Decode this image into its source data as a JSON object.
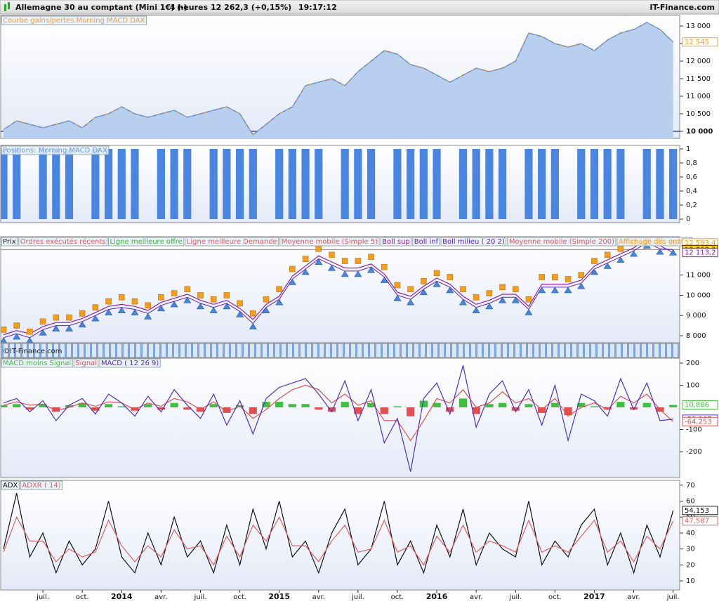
{
  "header": {
    "instrument": "Allemagne 30 au comptant (Mini 1€) (-)",
    "period": "4 heures",
    "quote": "12 262,3 (+0,15%)",
    "time": "19:17:12",
    "brand": "IT-Finance.com"
  },
  "watermark": "©IT-Finance.com",
  "chart_data": [
    {
      "type": "area",
      "title": "Courbe gains/pertes Morning MACD DAX",
      "title_color": "#f0a040",
      "x": [
        0,
        1,
        2,
        3,
        4,
        5,
        6,
        7,
        8,
        9,
        10,
        11,
        12,
        13,
        14,
        15,
        16,
        17,
        18,
        19,
        20,
        21,
        22,
        23,
        24,
        25,
        26,
        27,
        28,
        29,
        30,
        31,
        32,
        33,
        34,
        35,
        36,
        37,
        38,
        39,
        40,
        41,
        42,
        43,
        44,
        45,
        46,
        47,
        48,
        49,
        50,
        51
      ],
      "xlim": [
        0,
        51.5
      ],
      "ylim": [
        9800,
        13300
      ],
      "yticks": [
        {
          "value": 10000,
          "label": "10 000"
        },
        {
          "value": 10500,
          "label": "10 500"
        },
        {
          "value": 11000,
          "label": "11 000"
        },
        {
          "value": 11500,
          "label": "11 500"
        },
        {
          "value": 12000,
          "label": "12 000"
        },
        {
          "value": 12500,
          "label": "12 500"
        },
        {
          "value": 13000,
          "label": "13 000"
        }
      ],
      "baseline": 10000,
      "series": [
        {
          "name": "Courbe gains/pertes",
          "style": "area",
          "color": "#5b8fd6",
          "line_color": "#f0a040",
          "values": [
            10050,
            10300,
            10200,
            10100,
            10200,
            10300,
            10100,
            10400,
            10500,
            10700,
            10500,
            10400,
            10500,
            10600,
            10400,
            10500,
            10600,
            10700,
            10500,
            9900,
            10200,
            10500,
            10700,
            11300,
            11400,
            11500,
            11300,
            11700,
            12000,
            12300,
            12200,
            11900,
            11800,
            11600,
            11400,
            11600,
            11800,
            11700,
            11800,
            12000,
            12800,
            12700,
            12500,
            12400,
            12500,
            12300,
            12600,
            12800,
            12900,
            13100,
            12900,
            12545
          ]
        }
      ],
      "last_labels": [
        {
          "value": 12545,
          "label": "12 545",
          "color": "#f0a040",
          "fill": "#ffffff"
        }
      ]
    },
    {
      "type": "bar",
      "title": "Positions: Morning MACD DAX",
      "title_color": "#6a9ad8",
      "x": [
        0,
        1,
        2,
        3,
        4,
        5,
        6,
        7,
        8,
        9,
        10,
        11,
        12,
        13,
        14,
        15,
        16,
        17,
        18,
        19,
        20,
        21,
        22,
        23,
        24,
        25,
        26,
        27,
        28,
        29,
        30,
        31,
        32,
        33,
        34,
        35,
        36,
        37,
        38,
        39,
        40,
        41,
        42,
        43,
        44,
        45,
        46,
        47,
        48,
        49,
        50,
        51
      ],
      "xlim": [
        0,
        51.5
      ],
      "ylim": [
        -0.05,
        1.05
      ],
      "yticks": [
        0,
        {
          "value": 0.2,
          "label": "0,2"
        },
        {
          "value": 0.4,
          "label": "0,4"
        },
        {
          "value": 0.6,
          "label": "0,6"
        },
        {
          "value": 0.8,
          "label": "0,8"
        },
        1
      ],
      "series": [
        {
          "name": "Positions",
          "style": "bar",
          "color": "#4a86e0",
          "values": [
            1,
            1,
            0,
            1,
            1,
            1,
            0,
            1,
            1,
            1,
            1,
            0,
            1,
            1,
            1,
            0,
            1,
            1,
            1,
            1,
            0,
            1,
            1,
            1,
            1,
            0,
            1,
            1,
            1,
            0,
            1,
            1,
            1,
            1,
            0,
            1,
            1,
            1,
            1,
            0,
            1,
            1,
            1,
            0,
            1,
            1,
            1,
            1,
            0,
            1,
            1,
            1
          ]
        }
      ]
    },
    {
      "type": "line",
      "x": [
        0,
        1,
        2,
        3,
        4,
        5,
        6,
        7,
        8,
        9,
        10,
        11,
        12,
        13,
        14,
        15,
        16,
        17,
        18,
        19,
        20,
        21,
        22,
        23,
        24,
        25,
        26,
        27,
        28,
        29,
        30,
        31,
        32,
        33,
        34,
        35,
        36,
        37,
        38,
        39,
        40,
        41,
        42,
        43,
        44,
        45,
        46,
        47,
        48,
        49,
        50,
        51
      ],
      "xlim": [
        0,
        51.5
      ],
      "ylim": [
        7650,
        12900
      ],
      "yticks": [
        {
          "value": 8000,
          "label": "8 000"
        },
        {
          "value": 9000,
          "label": "9 000"
        },
        {
          "value": 10000,
          "label": "10 000"
        },
        {
          "value": 11000,
          "label": "11 000"
        }
      ],
      "series": [
        {
          "name": "Prix",
          "color": "#222222"
        },
        {
          "name": "Ordres exécutés récents",
          "color": "#e06060"
        },
        {
          "name": "Ligne meilleure offre",
          "color": "#40b040"
        },
        {
          "name": "Ligne meilleure Demande",
          "color": "#e06060",
          "style": "level",
          "level": 12262.3
        },
        {
          "name": "Moyenne mobile (Simple 5)",
          "color": "#d06060"
        },
        {
          "name": "Boll sup",
          "color": "#9020a0",
          "style": "line",
          "values": [
            8050,
            8250,
            8100,
            8450,
            8650,
            8650,
            8850,
            9150,
            9450,
            9550,
            9450,
            9250,
            9650,
            9850,
            10050,
            9750,
            9550,
            9750,
            9350,
            8800,
            9550,
            9950,
            10950,
            11450,
            11950,
            11650,
            11350,
            11350,
            11550,
            11050,
            10150,
            9950,
            10450,
            10850,
            10550,
            9950,
            9550,
            9750,
            10050,
            10050,
            9450,
            10550,
            10550,
            10550,
            10750,
            11450,
            11750,
            12050,
            12350,
            12750,
            12450,
            12113.2
          ]
        },
        {
          "name": "Boll inf",
          "color": "#6020c0",
          "style": "marker-up",
          "marker_color": "#4a86d8",
          "values": [
            7900,
            8100,
            7900,
            8300,
            8500,
            8500,
            8700,
            9000,
            9300,
            9400,
            9300,
            9100,
            9500,
            9700,
            9900,
            9600,
            9400,
            9600,
            9200,
            8600,
            9400,
            9800,
            10800,
            11300,
            11800,
            11500,
            11200,
            11200,
            11400,
            10900,
            10000,
            9800,
            10300,
            10700,
            10400,
            9800,
            9400,
            9600,
            9900,
            9900,
            9300,
            10400,
            10400,
            10400,
            10600,
            11300,
            11600,
            11900,
            12200,
            12600,
            12300,
            12262.3
          ]
        },
        {
          "name": "Boll milieu ( 20 2)",
          "color": "#6020c0"
        },
        {
          "name": "Moyenne mobile (Simple 200)",
          "color": "#d06060"
        },
        {
          "name": "Affichage des ordres",
          "color": "#f0a020",
          "style": "marker-square",
          "values": [
            8300,
            8500,
            8200,
            8700,
            8900,
            8900,
            9100,
            9400,
            9700,
            9900,
            9700,
            9500,
            9900,
            10100,
            10300,
            10000,
            9800,
            10000,
            9600,
            9100,
            9800,
            10300,
            11300,
            11800,
            12300,
            12000,
            11700,
            11700,
            11900,
            11400,
            10500,
            10300,
            10700,
            11100,
            10900,
            10300,
            9900,
            10100,
            10400,
            10300,
            9800,
            10900,
            10900,
            10800,
            11000,
            11700,
            12000,
            12300,
            12600,
            12800,
            12700,
            12593.4
          ]
        }
      ],
      "last_labels": [
        {
          "value": 12593.4,
          "label": "12 593,4",
          "color": "#f0a020",
          "fill": "#ffffff"
        },
        {
          "value": 12262.3,
          "label": "12 262,3",
          "color": "#222222",
          "fill": "#ffd21f"
        },
        {
          "value": 12113.2,
          "label": "12 113,2",
          "color": "#9020a0",
          "fill": "#ffffff"
        }
      ]
    },
    {
      "type": "line",
      "x": [
        0,
        1,
        2,
        3,
        4,
        5,
        6,
        7,
        8,
        9,
        10,
        11,
        12,
        13,
        14,
        15,
        16,
        17,
        18,
        19,
        20,
        21,
        22,
        23,
        24,
        25,
        26,
        27,
        28,
        29,
        30,
        31,
        32,
        33,
        34,
        35,
        36,
        37,
        38,
        39,
        40,
        41,
        42,
        43,
        44,
        45,
        46,
        47,
        48,
        49,
        50,
        51
      ],
      "xlim": [
        0,
        51.5
      ],
      "ylim": [
        -317,
        222
      ],
      "yticks": [
        -200,
        -100,
        100,
        200
      ],
      "series": [
        {
          "name": "MACD moins Signal",
          "style": "bar",
          "color": "#40c040",
          "negative_color": "#e05050",
          "values": [
            10,
            15,
            -10,
            15,
            -20,
            10,
            20,
            -15,
            15,
            5,
            -15,
            15,
            -10,
            20,
            -10,
            -20,
            15,
            -25,
            10,
            -30,
            25,
            25,
            15,
            15,
            -10,
            -20,
            25,
            -30,
            20,
            -30,
            5,
            -40,
            30,
            20,
            -20,
            40,
            -30,
            15,
            20,
            -15,
            15,
            -25,
            20,
            -35,
            20,
            5,
            -10,
            25,
            -10,
            20,
            -20,
            10.886
          ]
        },
        {
          "name": "Signal",
          "style": "line",
          "color": "#e05050",
          "values": [
            10,
            25,
            10,
            15,
            -15,
            0,
            20,
            5,
            25,
            20,
            -10,
            20,
            5,
            40,
            25,
            -10,
            25,
            -20,
            5,
            -50,
            -10,
            40,
            80,
            100,
            80,
            20,
            60,
            10,
            30,
            -60,
            -60,
            -150,
            -60,
            40,
            20,
            80,
            0,
            20,
            70,
            20,
            40,
            -10,
            40,
            -40,
            0,
            20,
            -10,
            50,
            20,
            60,
            -10,
            -64.253
          ]
        },
        {
          "name": "MACD ( 12 26 9)",
          "style": "line",
          "color": "#5030c0",
          "values": [
            20,
            40,
            -20,
            30,
            -60,
            10,
            40,
            -30,
            60,
            20,
            -40,
            50,
            -20,
            80,
            10,
            -50,
            60,
            -80,
            30,
            -120,
            40,
            90,
            110,
            130,
            60,
            -20,
            120,
            -60,
            80,
            -160,
            -50,
            -290,
            40,
            110,
            -30,
            190,
            -90,
            60,
            120,
            -20,
            80,
            -80,
            100,
            -150,
            60,
            30,
            -40,
            130,
            -10,
            110,
            -60,
            -53.367
          ]
        }
      ],
      "last_labels": [
        {
          "value": 10.886,
          "label": "10,886",
          "color": "#40c040",
          "fill": "#ffffff"
        },
        {
          "value": -53.367,
          "label": "-53,367",
          "color": "#5030c0",
          "fill": "#ffffff"
        },
        {
          "value": -64.253,
          "label": "-64,253",
          "color": "#e05050",
          "fill": "#ffffff"
        }
      ]
    },
    {
      "type": "line",
      "x": [
        0,
        1,
        2,
        3,
        4,
        5,
        6,
        7,
        8,
        9,
        10,
        11,
        12,
        13,
        14,
        15,
        16,
        17,
        18,
        19,
        20,
        21,
        22,
        23,
        24,
        25,
        26,
        27,
        28,
        29,
        30,
        31,
        32,
        33,
        34,
        35,
        36,
        37,
        38,
        39,
        40,
        41,
        42,
        43,
        44,
        45,
        46,
        47,
        48,
        49,
        50,
        51
      ],
      "xlim": [
        0,
        51.5
      ],
      "ylim": [
        4.3,
        73
      ],
      "yticks": [
        10,
        20,
        30,
        40,
        50,
        60,
        70
      ],
      "xticks": [
        {
          "value": 3,
          "label": "juil."
        },
        {
          "value": 6,
          "label": "oct."
        },
        {
          "value": 9,
          "label": "2014"
        },
        {
          "value": 12,
          "label": "avr."
        },
        {
          "value": 15,
          "label": "juil."
        },
        {
          "value": 18,
          "label": "oct."
        },
        {
          "value": 21,
          "label": "2015"
        },
        {
          "value": 24,
          "label": "avr."
        },
        {
          "value": 27,
          "label": "juil."
        },
        {
          "value": 30,
          "label": "oct."
        },
        {
          "value": 33,
          "label": "2016"
        },
        {
          "value": 36,
          "label": "avr."
        },
        {
          "value": 39,
          "label": "juil."
        },
        {
          "value": 42,
          "label": "oct."
        },
        {
          "value": 45,
          "label": "2017"
        },
        {
          "value": 48,
          "label": "avr."
        },
        {
          "value": 51,
          "label": "juil."
        }
      ],
      "series": [
        {
          "name": "ADX",
          "style": "line",
          "color": "#111111",
          "values": [
            30,
            65,
            25,
            40,
            15,
            35,
            20,
            30,
            60,
            25,
            15,
            40,
            20,
            50,
            25,
            35,
            15,
            45,
            20,
            55,
            30,
            60,
            25,
            35,
            15,
            40,
            55,
            20,
            30,
            60,
            20,
            35,
            15,
            45,
            25,
            55,
            20,
            40,
            30,
            25,
            60,
            20,
            35,
            25,
            45,
            55,
            20,
            40,
            15,
            45,
            25,
            54.153
          ]
        },
        {
          "name": "ADXR ( 14)",
          "style": "line",
          "color": "#e06060",
          "values": [
            28,
            50,
            35,
            35,
            22,
            30,
            25,
            28,
            48,
            32,
            22,
            32,
            25,
            42,
            30,
            32,
            20,
            38,
            25,
            45,
            35,
            50,
            32,
            32,
            22,
            35,
            45,
            28,
            30,
            48,
            28,
            32,
            20,
            38,
            28,
            45,
            28,
            35,
            32,
            28,
            48,
            28,
            32,
            28,
            38,
            48,
            28,
            35,
            22,
            38,
            30,
            47.587
          ]
        }
      ],
      "last_labels": [
        {
          "value": 54.153,
          "label": "54,153",
          "color": "#111111",
          "fill": "#ffffff"
        },
        {
          "value": 47.587,
          "label": "47,587",
          "color": "#e06060",
          "fill": "#ffffff"
        }
      ]
    }
  ]
}
